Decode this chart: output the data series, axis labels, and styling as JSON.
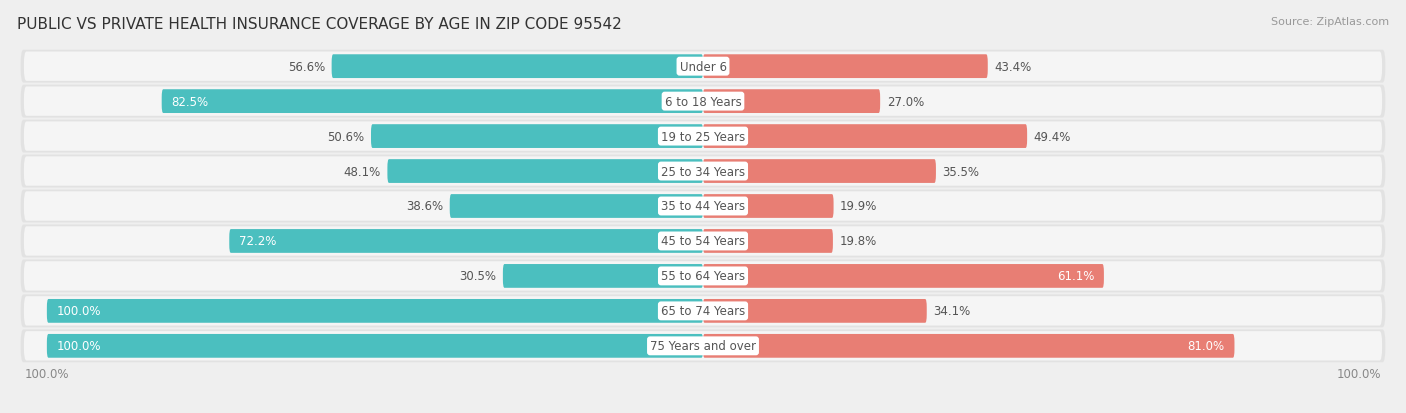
{
  "title": "PUBLIC VS PRIVATE HEALTH INSURANCE COVERAGE BY AGE IN ZIP CODE 95542",
  "source": "Source: ZipAtlas.com",
  "categories": [
    "Under 6",
    "6 to 18 Years",
    "19 to 25 Years",
    "25 to 34 Years",
    "35 to 44 Years",
    "45 to 54 Years",
    "55 to 64 Years",
    "65 to 74 Years",
    "75 Years and over"
  ],
  "public_values": [
    56.6,
    82.5,
    50.6,
    48.1,
    38.6,
    72.2,
    30.5,
    100.0,
    100.0
  ],
  "private_values": [
    43.4,
    27.0,
    49.4,
    35.5,
    19.9,
    19.8,
    61.1,
    34.1,
    81.0
  ],
  "public_color": "#4bbfbf",
  "private_color": "#e87e74",
  "bg_color": "#efefef",
  "row_bg_color": "#e2e2e2",
  "row_inner_color": "#f5f5f5",
  "max_val": 100.0,
  "title_fontsize": 11,
  "label_fontsize": 8.5,
  "tick_fontsize": 8.5,
  "legend_fontsize": 8.5,
  "source_fontsize": 8
}
